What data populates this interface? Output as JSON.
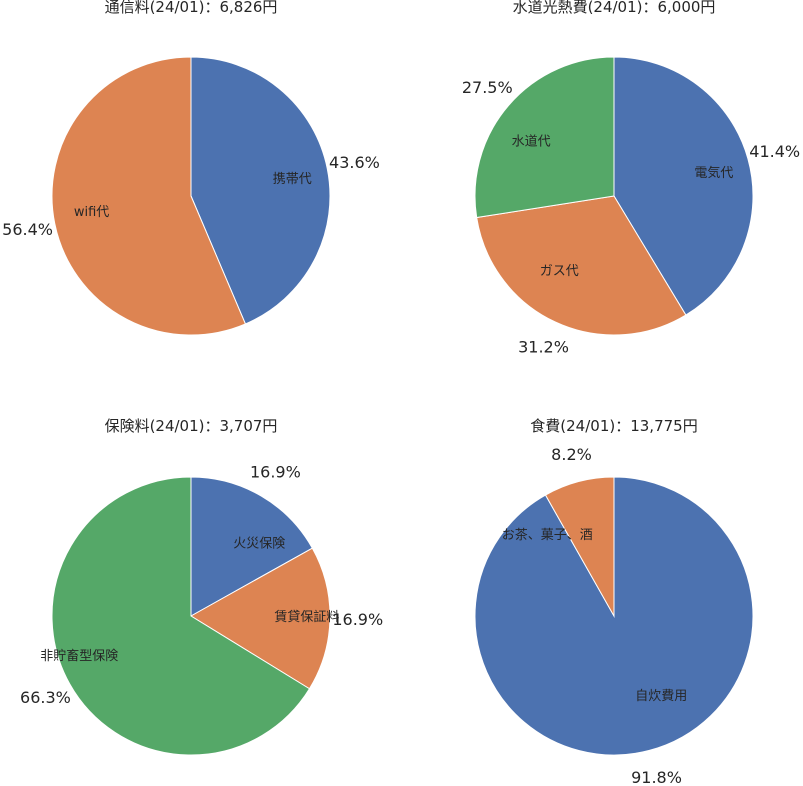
{
  "chart_data": [
    {
      "type": "pie",
      "title": "通信料(24/01)：6,826円",
      "labels": [
        "携帯代",
        "wifi代"
      ],
      "values": [
        43.6,
        56.4
      ],
      "colors": [
        "#4C72B0",
        "#DD8452"
      ],
      "start_angle": 90,
      "direction": "clockwise"
    },
    {
      "type": "pie",
      "title": "水道光熱費(24/01)：6,000円",
      "labels": [
        "電気代",
        "ガス代",
        "水道代"
      ],
      "values": [
        41.4,
        31.2,
        27.5
      ],
      "colors": [
        "#4C72B0",
        "#DD8452",
        "#55A868"
      ],
      "start_angle": 90,
      "direction": "clockwise"
    },
    {
      "type": "pie",
      "title": "保険料(24/01)：3,707円",
      "labels": [
        "火災保険",
        "賃貸保証料",
        "非貯畜型保険"
      ],
      "values": [
        16.9,
        16.9,
        66.3
      ],
      "colors": [
        "#4C72B0",
        "#DD8452",
        "#55A868"
      ],
      "start_angle": 90,
      "direction": "clockwise"
    },
    {
      "type": "pie",
      "title": "食費(24/01)：13,775円",
      "labels": [
        "自炊費用",
        "お茶、菓子、酒"
      ],
      "values": [
        91.8,
        8.2
      ],
      "colors": [
        "#4C72B0",
        "#DD8452"
      ],
      "start_angle": 90,
      "direction": "clockwise"
    }
  ]
}
